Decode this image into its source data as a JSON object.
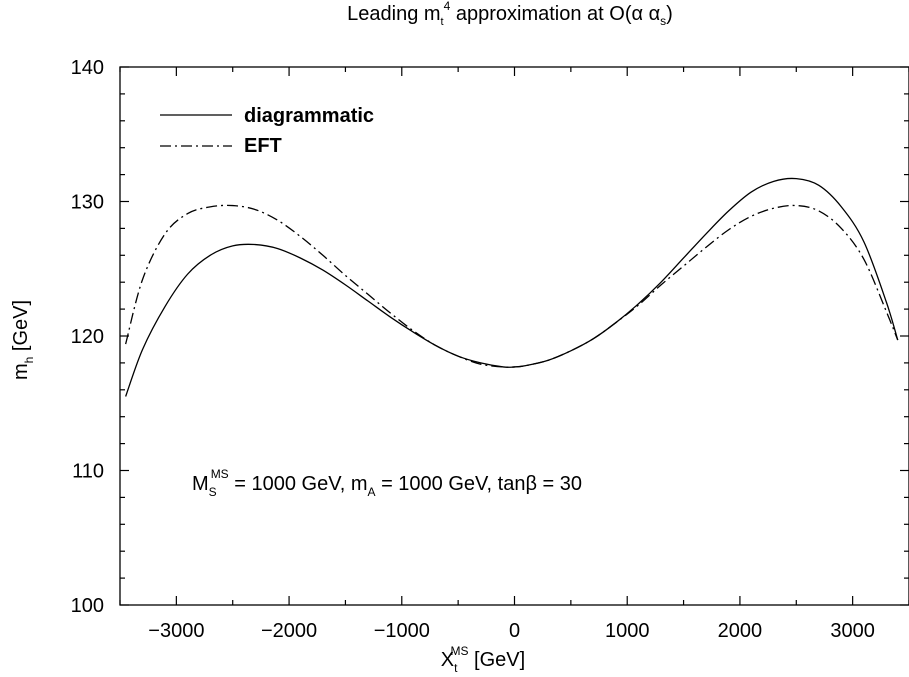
{
  "chart_data": {
    "type": "line",
    "title": {
      "base1": "Leading m",
      "sub1": "t",
      "sup1": "4",
      "base2": " approximation at O(α α",
      "sub2": "s",
      "base3": ")"
    },
    "xlabel": {
      "base": "X",
      "sub": "t",
      "sup": "MS",
      "rest": " [GeV]"
    },
    "ylabel": {
      "base": "m",
      "sub": "h",
      "rest": " [GeV]"
    },
    "xlim": [
      -3500,
      3500
    ],
    "ylim": [
      100,
      140
    ],
    "xticks": [
      -3000,
      -2000,
      -1000,
      0,
      1000,
      2000,
      3000
    ],
    "xtick_labels": [
      "−3000",
      "−2000",
      "−1000",
      "0",
      "1000",
      "2000",
      "3000"
    ],
    "yticks": [
      100,
      110,
      120,
      130,
      140
    ],
    "ytick_labels": [
      "100",
      "110",
      "120",
      "130",
      "140"
    ],
    "grid": false,
    "legend_position": "top-left",
    "annotation": {
      "p1_base": "M",
      "p1_sub": "S",
      "p1_sup": "MS",
      "p2": " = 1000 GeV, m",
      "p2_sub": "A",
      "p3": " = 1000 GeV, tanβ = 30"
    },
    "series": [
      {
        "name": "diagrammatic",
        "style": "solid",
        "x": [
          -3450,
          -3300,
          -3100,
          -2900,
          -2700,
          -2500,
          -2300,
          -2100,
          -1900,
          -1700,
          -1500,
          -1300,
          -1100,
          -900,
          -700,
          -500,
          -300,
          -100,
          0,
          100,
          300,
          500,
          700,
          900,
          1100,
          1300,
          1500,
          1700,
          1900,
          2100,
          2300,
          2500,
          2700,
          2900,
          3100,
          3300,
          3400
        ],
        "y": [
          115.5,
          119.0,
          122.2,
          124.6,
          126.0,
          126.7,
          126.8,
          126.5,
          125.8,
          124.9,
          123.8,
          122.6,
          121.4,
          120.3,
          119.3,
          118.5,
          118.0,
          117.7,
          117.7,
          117.8,
          118.2,
          118.9,
          119.8,
          121.0,
          122.4,
          124.0,
          125.8,
          127.6,
          129.3,
          130.7,
          131.5,
          131.7,
          131.2,
          129.6,
          127.0,
          122.5,
          119.7
        ]
      },
      {
        "name": "EFT",
        "style": "dash-dot",
        "x": [
          -3450,
          -3300,
          -3100,
          -2900,
          -2700,
          -2500,
          -2300,
          -2100,
          -1900,
          -1700,
          -1500,
          -1300,
          -1100,
          -900,
          -700,
          -500,
          -300,
          -100,
          0,
          100,
          300,
          500,
          700,
          900,
          1100,
          1300,
          1500,
          1700,
          1900,
          2100,
          2300,
          2500,
          2700,
          2900,
          3100,
          3300,
          3400
        ],
        "y": [
          119.4,
          124.2,
          127.6,
          129.1,
          129.6,
          129.7,
          129.4,
          128.6,
          127.4,
          126.0,
          124.5,
          123.1,
          121.7,
          120.4,
          119.3,
          118.5,
          117.9,
          117.7,
          117.7,
          117.8,
          118.2,
          118.9,
          119.8,
          121.0,
          122.3,
          123.8,
          125.2,
          126.6,
          127.9,
          128.9,
          129.5,
          129.7,
          129.3,
          128.0,
          125.7,
          121.8,
          119.7
        ]
      }
    ]
  }
}
